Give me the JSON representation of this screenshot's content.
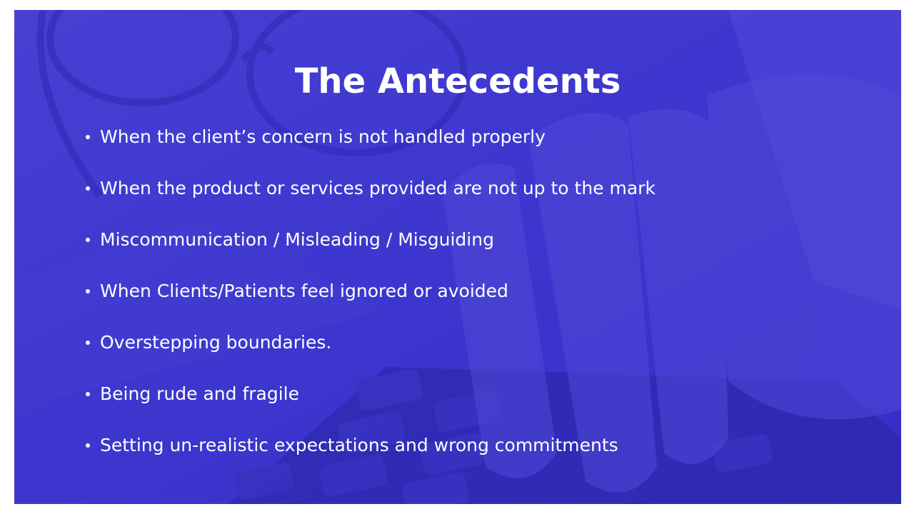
{
  "slide": {
    "title": "The Antecedents",
    "background_photo": "hand-on-calculator-with-glasses",
    "overlay_color": "#3a34cc",
    "text_color": "#ffffff",
    "bullets": [
      "When the client’s concern is not handled properly",
      "When the product or services provided are not up to the mark",
      "Miscommunication / Misleading / Misguiding",
      "When Clients/Patients feel ignored or avoided",
      "Overstepping boundaries.",
      "Being rude and fragile",
      "Setting un-realistic expectations and wrong commitments"
    ]
  }
}
